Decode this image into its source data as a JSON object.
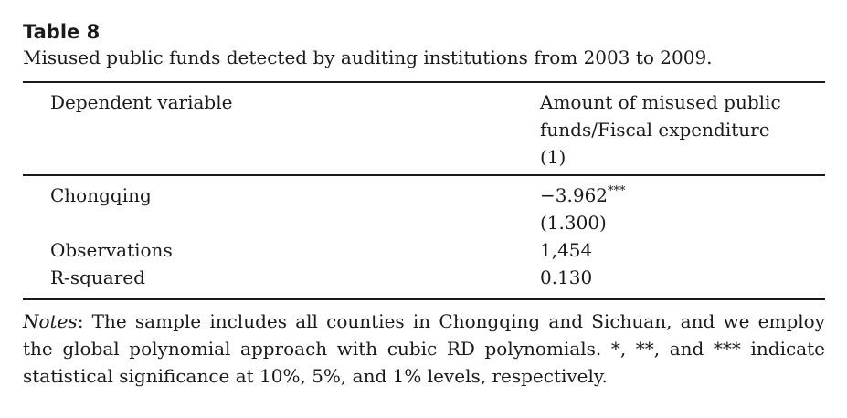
{
  "table": {
    "label": "Table 8",
    "caption": "Misused public funds detected by auditing institutions from 2003 to 2009."
  },
  "header": {
    "dependent_variable": "Dependent variable",
    "column_title_line1": "Amount of misused public",
    "column_title_line2": "funds/Fiscal expenditure",
    "column_number": "(1)"
  },
  "rows": [
    {
      "label": "Chongqing",
      "coef": "−3.962",
      "stars": "***",
      "se": "(1.300)"
    },
    {
      "label": "Observations",
      "value": "1,454"
    },
    {
      "label": "R-squared",
      "value": "0.130"
    }
  ],
  "notes": {
    "label": "Notes",
    "text": ": The sample includes all counties in Chongqing and Sichuan, and we employ the global polynomial approach with cubic RD polynomials. *, **, and *** indicate statistical significance at 10%, 5%, and 1% levels, respectively."
  }
}
